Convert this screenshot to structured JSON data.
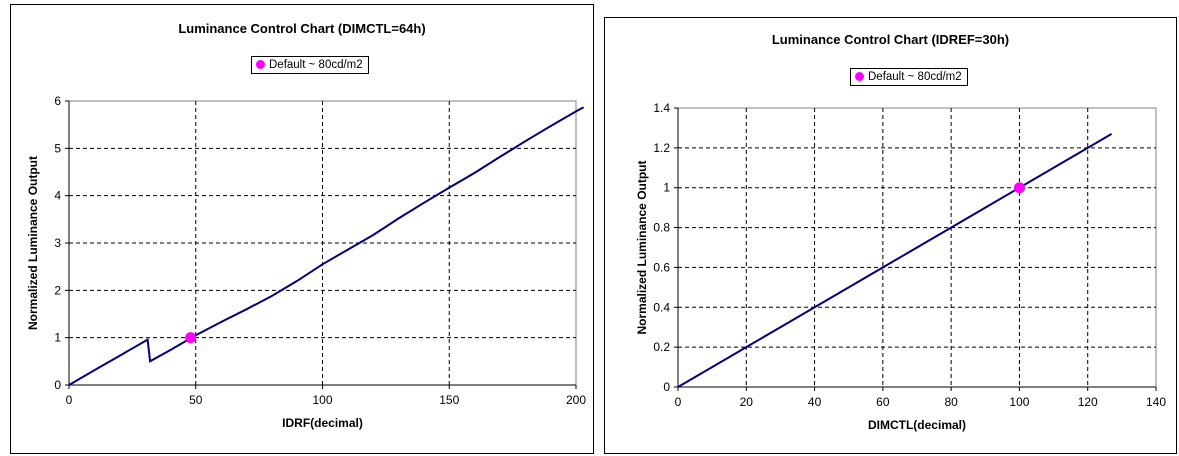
{
  "chart_data": [
    {
      "type": "line",
      "title": "Luminance Control Chart (DIMCTL=64h)",
      "xlabel": "IDRF(decimal)",
      "ylabel": "Normalized Luminance Output",
      "xlim": [
        0,
        200
      ],
      "ylim": [
        0,
        6
      ],
      "xticks": [
        0,
        50,
        100,
        150,
        200
      ],
      "yticks": [
        0,
        1,
        2,
        3,
        4,
        5,
        6
      ],
      "grid": true,
      "legend": {
        "position": "top-center",
        "entries": [
          "Default ~ 80cd/m2"
        ]
      },
      "series": [
        {
          "color": "#000080",
          "x": [
            0,
            10,
            20,
            31,
            32,
            40,
            50,
            60,
            70,
            80,
            90,
            100,
            110,
            120,
            130,
            140,
            150,
            160,
            170,
            180,
            190,
            200,
            203
          ],
          "y": [
            0,
            0.31,
            0.62,
            0.96,
            0.5,
            0.74,
            1.05,
            1.33,
            1.6,
            1.88,
            2.2,
            2.55,
            2.86,
            3.17,
            3.52,
            3.85,
            4.17,
            4.48,
            4.82,
            5.15,
            5.47,
            5.78,
            5.87
          ]
        }
      ],
      "marker": {
        "name": "Default ~ 80cd/m2",
        "x": 48,
        "y": 1,
        "color": "#ff00ff"
      }
    },
    {
      "type": "line",
      "title": "Luminance Control Chart (IDREF=30h)",
      "xlabel": "DIMCTL(decimal)",
      "ylabel": "Normalized Luminance Output",
      "xlim": [
        0,
        140
      ],
      "ylim": [
        0,
        1.4
      ],
      "xticks": [
        0,
        20,
        40,
        60,
        80,
        100,
        120,
        140
      ],
      "yticks": [
        0,
        0.2,
        0.4,
        0.6,
        0.8,
        1,
        1.2,
        1.4
      ],
      "grid": true,
      "legend": {
        "position": "top-center",
        "entries": [
          "Default ~ 80cd/m2"
        ]
      },
      "series": [
        {
          "color": "#000080",
          "x": [
            0,
            10,
            20,
            30,
            40,
            50,
            60,
            70,
            80,
            90,
            100,
            110,
            120,
            127
          ],
          "y": [
            0,
            0.1,
            0.2,
            0.3,
            0.4,
            0.5,
            0.6,
            0.7,
            0.8,
            0.9,
            1.0,
            1.1,
            1.2,
            1.27
          ]
        }
      ],
      "marker": {
        "name": "Default ~ 80cd/m2",
        "x": 100,
        "y": 1,
        "color": "#ff00ff"
      }
    }
  ]
}
